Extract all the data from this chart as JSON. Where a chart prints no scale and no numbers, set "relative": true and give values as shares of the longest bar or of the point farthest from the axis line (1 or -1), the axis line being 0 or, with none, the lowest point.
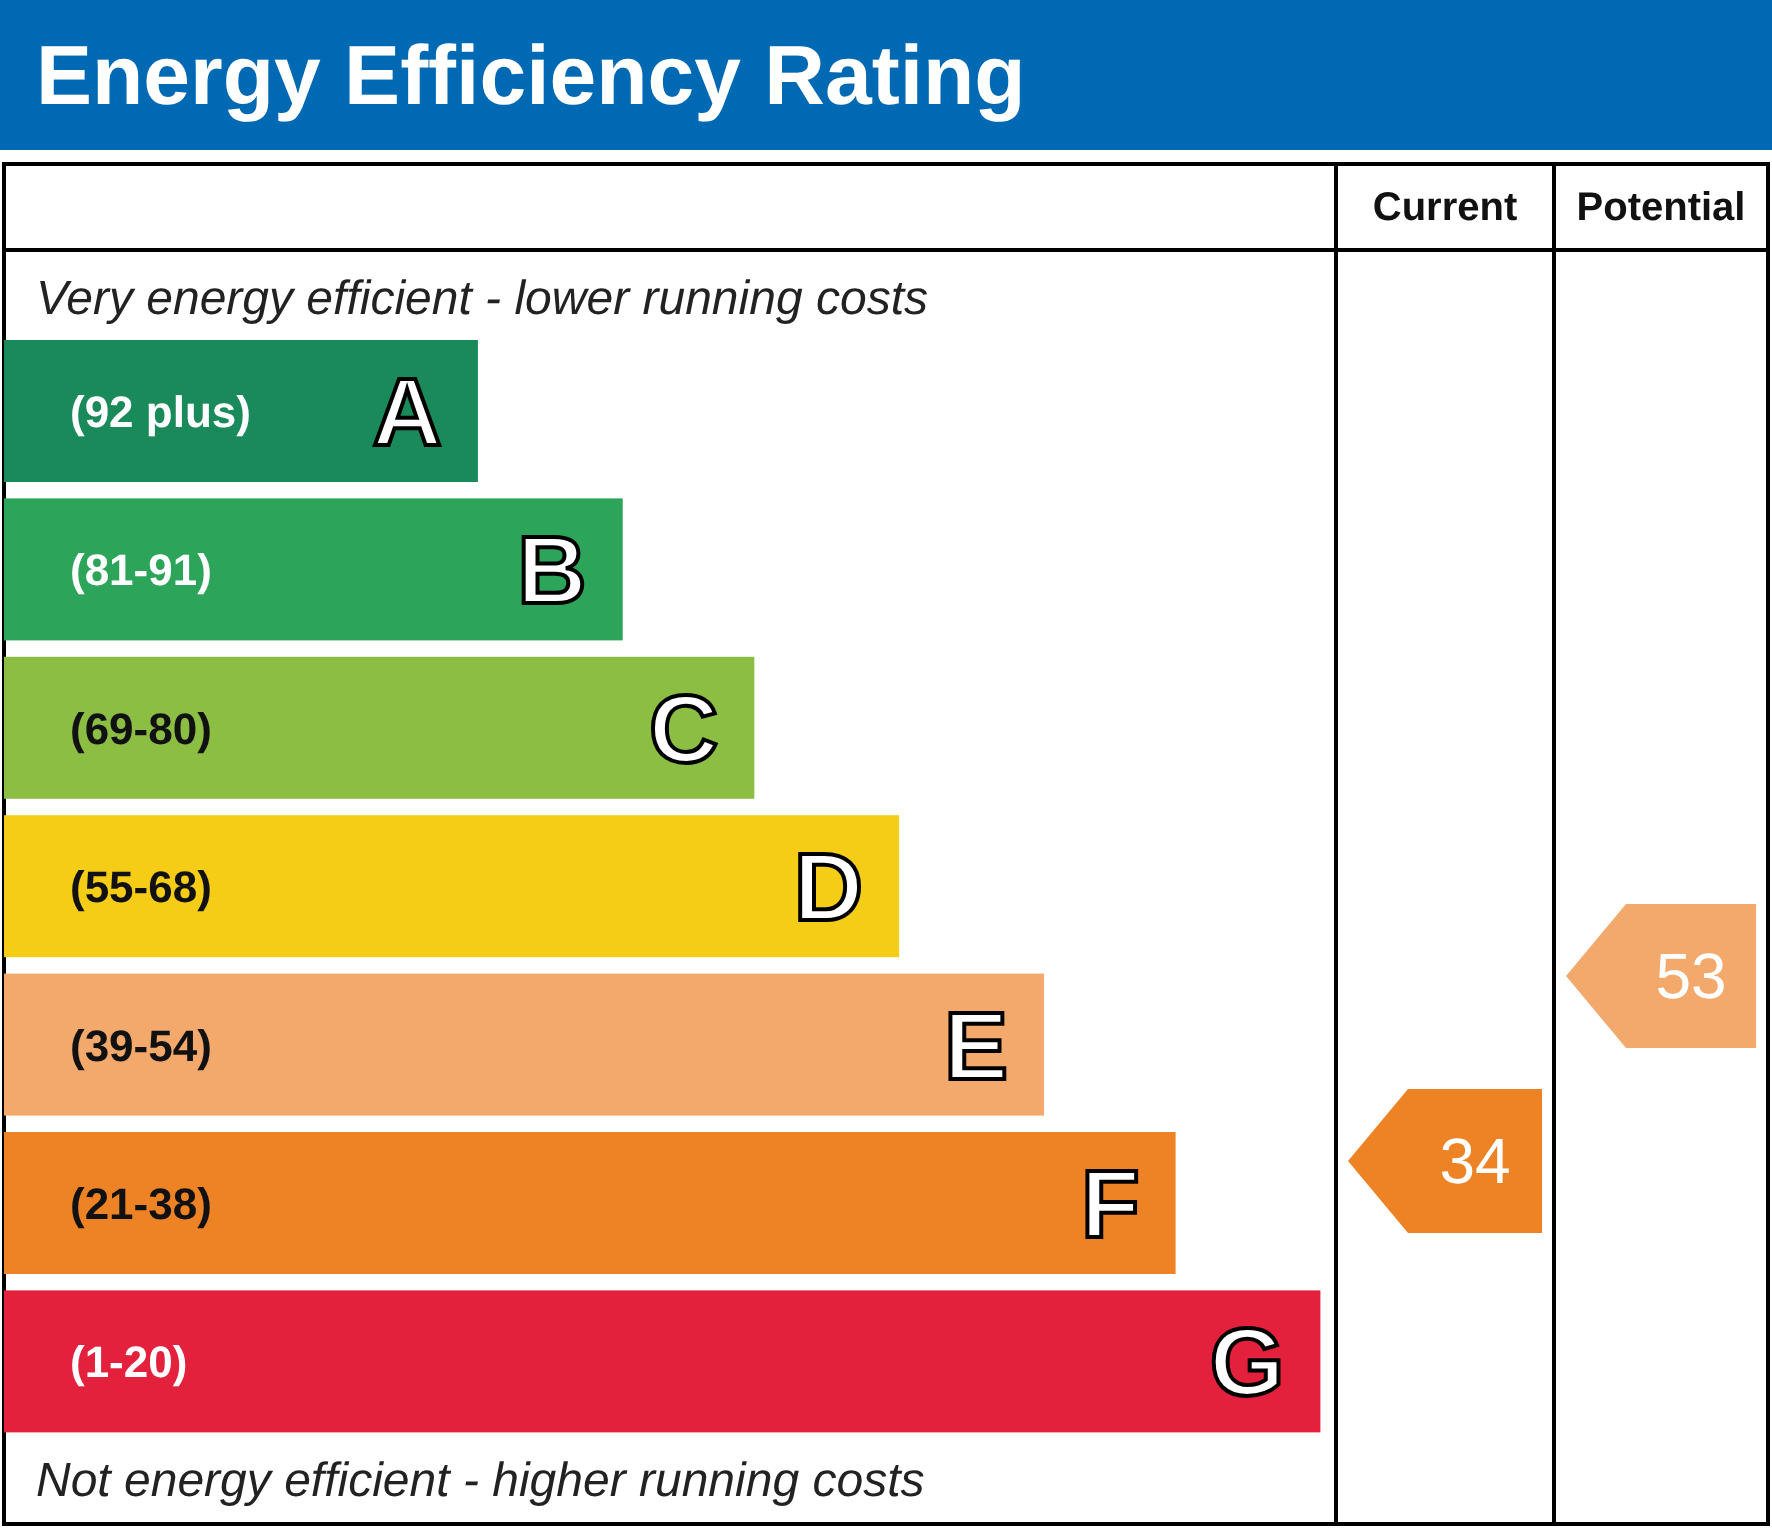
{
  "chart_data": {
    "type": "bar",
    "orientation": "horizontal",
    "relative": true,
    "title": "Energy Efficiency Rating",
    "values": [
      0.36,
      0.47,
      0.57,
      0.68,
      0.79,
      0.89,
      1
    ],
    "categories": [
      "(92 plus)",
      "(81-91)",
      "(69-80)",
      "(55-68)",
      "(39-54)",
      "(21-38)",
      "(1-20)"
    ],
    "colors": [
      "#1a8a5a",
      "#2ca55a",
      "#8cbe44",
      "#f5cc16",
      "#f2a96b",
      "#ee8326",
      "#e4213c"
    ],
    "annotations": [
      "Very energy efficient - lower running costs",
      "Not energy efficient - higher running costs",
      "Current",
      "Potential",
      "A",
      "B",
      "C",
      "D",
      "E",
      "F",
      "G",
      "34",
      "53"
    ]
  }
}
